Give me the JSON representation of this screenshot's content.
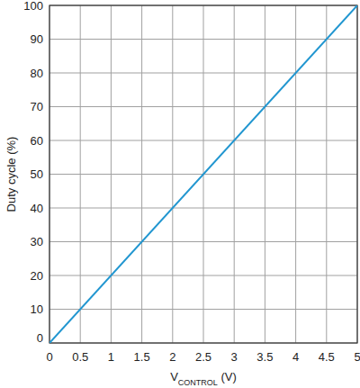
{
  "chart_data": {
    "type": "line",
    "x_label": [
      "V",
      "CONTROL",
      " (V)"
    ],
    "y_label": "Duty cycle (%)",
    "x": [
      0,
      5
    ],
    "values": [
      0,
      100
    ],
    "color": "#2196d0",
    "xlim": [
      0,
      5
    ],
    "ylim": [
      0,
      100
    ],
    "xticks": [
      0,
      0.5,
      1,
      1.5,
      2,
      2.5,
      3,
      3.5,
      4,
      4.5,
      5
    ],
    "yticks": [
      0,
      10,
      20,
      30,
      40,
      50,
      60,
      70,
      80,
      90,
      100
    ],
    "grid": true
  }
}
